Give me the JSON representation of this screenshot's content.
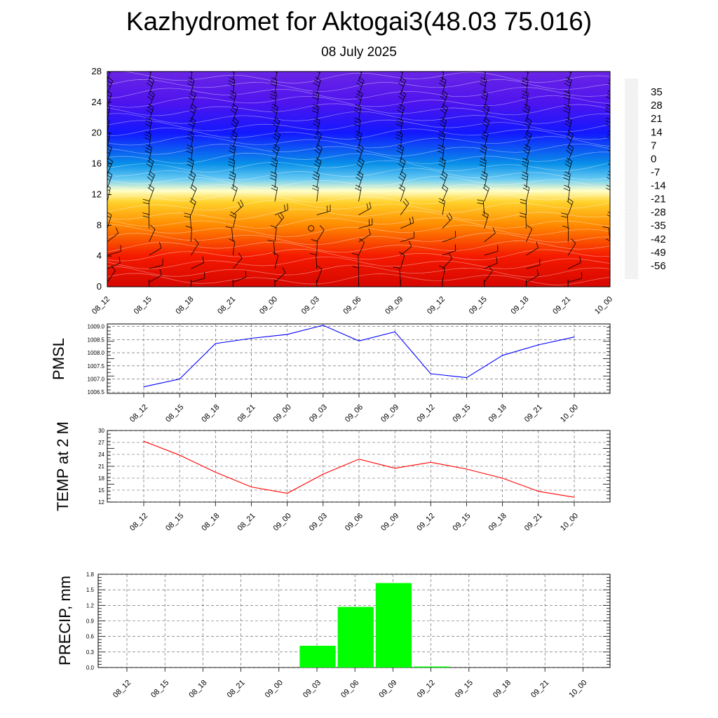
{
  "title": "Kazhydromet for Aktogai3(48.03 75.016)",
  "subtitle": "08 July 2025",
  "colors": {
    "pmsl_line": "#0000ff",
    "temp_line": "#ff0000",
    "precip_bar": "#00ff00",
    "frame": "#000000",
    "grid": "#555555"
  },
  "chart_data": [
    {
      "type": "heatmap",
      "name": "temperature-wind-profile",
      "x": [
        "08_12",
        "08_15",
        "08_18",
        "08_21",
        "09_00",
        "09_03",
        "09_06",
        "09_09",
        "09_12",
        "09_15",
        "09_18",
        "09_21",
        "10_00"
      ],
      "y_ticks": [
        "0",
        "4",
        "8",
        "12",
        "16",
        "20",
        "24",
        "28"
      ],
      "ylim": [
        0,
        28
      ],
      "colorbar": {
        "labels": [
          "35",
          "28",
          "21",
          "14",
          "7",
          "0",
          "-7",
          "-14",
          "-21",
          "-28",
          "-35",
          "-42",
          "-49",
          "-56"
        ],
        "range": [
          -63,
          42
        ],
        "stops": [
          {
            "value": 42,
            "color": "#f2f2f2"
          },
          {
            "value": 35,
            "color": "#f07878"
          },
          {
            "value": 28,
            "color": "#cc0000"
          },
          {
            "value": 18,
            "color": "#ff2000"
          },
          {
            "value": 10,
            "color": "#ff6a00"
          },
          {
            "value": 2,
            "color": "#ffaa00"
          },
          {
            "value": -5,
            "color": "#ffd830"
          },
          {
            "value": -10,
            "color": "#ffff90"
          },
          {
            "value": -14,
            "color": "#ffffff"
          },
          {
            "value": -17,
            "color": "#bfe8f8"
          },
          {
            "value": -22,
            "color": "#30b8f0"
          },
          {
            "value": -30,
            "color": "#0890e8"
          },
          {
            "value": -38,
            "color": "#2050ff"
          },
          {
            "value": -46,
            "color": "#1010ff"
          },
          {
            "value": -54,
            "color": "#4a10f0"
          },
          {
            "value": -63,
            "color": "#7a30e0"
          }
        ]
      },
      "profile": [
        {
          "height": 0,
          "temp": 26
        },
        {
          "height": 4,
          "temp": 20
        },
        {
          "height": 8,
          "temp": 6
        },
        {
          "height": 11,
          "temp": -4
        },
        {
          "height": 12.5,
          "temp": -12
        },
        {
          "height": 14,
          "temp": -20
        },
        {
          "height": 16,
          "temp": -30
        },
        {
          "height": 20,
          "temp": -45
        },
        {
          "height": 24,
          "temp": -55
        },
        {
          "height": 28,
          "temp": -60
        }
      ]
    },
    {
      "type": "line",
      "name": "pmsl",
      "ylabel": "PMSL",
      "x": [
        "08_12",
        "08_15",
        "08_18",
        "08_21",
        "09_00",
        "09_03",
        "09_06",
        "09_09",
        "09_12",
        "09_15",
        "09_18",
        "09_21",
        "10_00"
      ],
      "y_ticks": [
        "1006.5",
        "1007.0",
        "1007.5",
        "1008.0",
        "1008.5",
        "1009.0"
      ],
      "ylim": [
        1006.45,
        1009.1
      ],
      "series": [
        {
          "values": [
            1006.7,
            1007.0,
            1008.35,
            1008.55,
            1008.7,
            1009.05,
            1008.45,
            1008.8,
            1007.2,
            1007.05,
            1007.9,
            1008.3,
            1008.6
          ]
        }
      ]
    },
    {
      "type": "line",
      "name": "temp-2m",
      "ylabel": "TEMP at 2 M",
      "x": [
        "08_12",
        "08_15",
        "08_18",
        "08_21",
        "09_00",
        "09_03",
        "09_06",
        "09_09",
        "09_12",
        "09_15",
        "09_18",
        "09_21",
        "10_00"
      ],
      "y_ticks": [
        "12",
        "15",
        "18",
        "21",
        "24",
        "27",
        "30"
      ],
      "ylim": [
        12,
        30
      ],
      "series": [
        {
          "values": [
            27.3,
            23.8,
            19.5,
            15.8,
            14.2,
            19.0,
            22.8,
            20.5,
            22.0,
            20.3,
            18.0,
            14.7,
            13.2
          ]
        }
      ]
    },
    {
      "type": "bar",
      "name": "precip",
      "ylabel": "PRECIP, mm",
      "categories": [
        "08_12",
        "08_15",
        "08_18",
        "08_21",
        "09_00",
        "09_03",
        "09_06",
        "09_09",
        "09_12",
        "09_15",
        "09_18",
        "09_21",
        "10_00"
      ],
      "y_ticks": [
        "0.0",
        "0.3",
        "0.6",
        "0.9",
        "1.2",
        "1.5",
        "1.8"
      ],
      "ylim": [
        0,
        1.8
      ],
      "values": [
        0,
        0,
        0,
        0,
        0,
        0.42,
        1.17,
        1.63,
        0.02,
        0,
        0,
        0,
        0
      ]
    }
  ]
}
